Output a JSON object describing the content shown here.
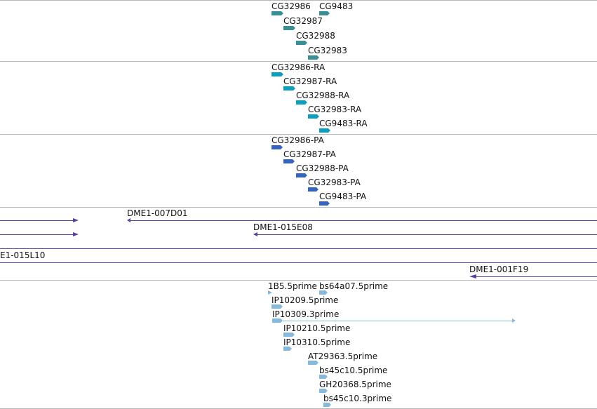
{
  "colors": {
    "gene": "#3a8f95",
    "transcript": "#0aa0bd",
    "protein": "#3563c2",
    "clone": "#5b3fa0",
    "est": "#86b8dc",
    "divider": "#b8b8b8"
  },
  "tracks": {
    "genes": [
      "CG32986",
      "CG9483",
      "CG32987",
      "CG32988",
      "CG32983"
    ],
    "transcripts": [
      "CG32986-RA",
      "CG32987-RA",
      "CG32988-RA",
      "CG32983-RA",
      "CG9483-RA"
    ],
    "proteins": [
      "CG32986-PA",
      "CG32987-PA",
      "CG32988-PA",
      "CG32983-PA",
      "CG9483-PA"
    ],
    "clones": [
      "DME1-007D01",
      "DME1-015E08",
      "E1-015L10",
      "DME1-001F19"
    ],
    "ests": [
      "1B5.5prime",
      "bs64a07.5prime",
      "IP10209.5prime",
      "IP10309.3prime",
      "IP10210.5prime",
      "IP10310.5prime",
      "AT29363.5prime",
      "bs45c10.5prime",
      "GH20368.5prime",
      "bs45c10.3prime"
    ]
  }
}
